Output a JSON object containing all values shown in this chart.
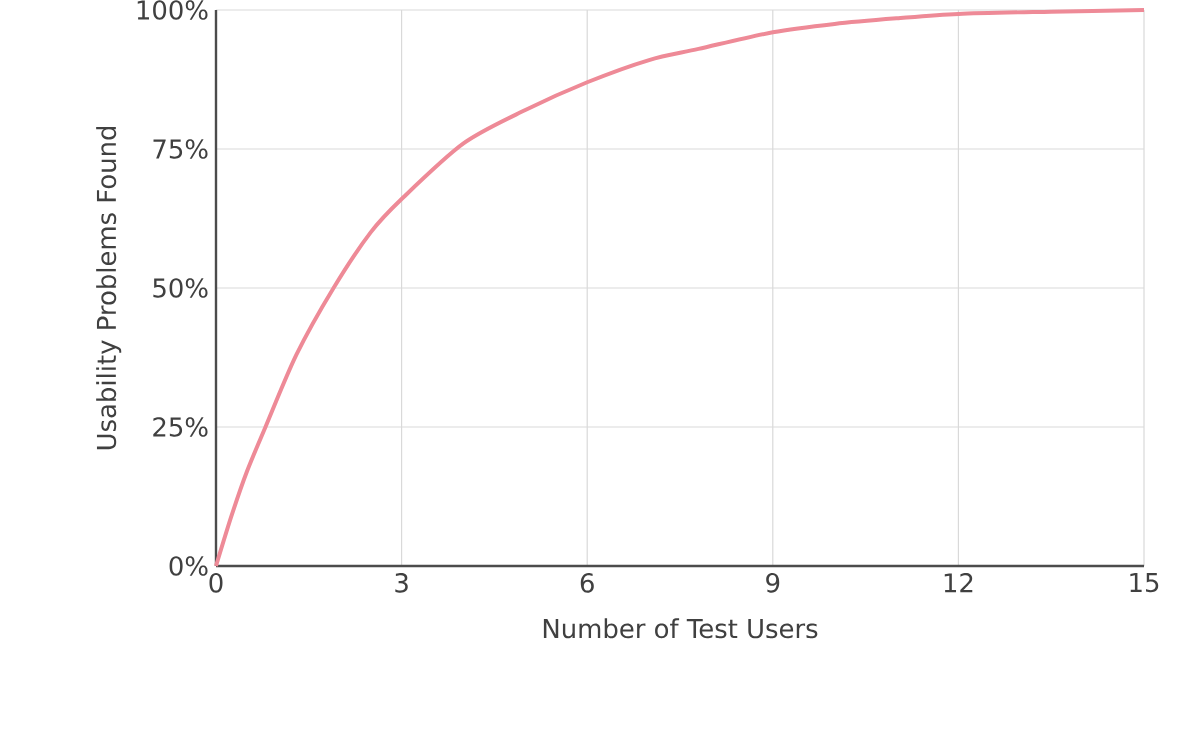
{
  "chart_data": {
    "type": "line",
    "xlabel": "Number of Test Users",
    "ylabel": "Usability Problems Found",
    "series": [
      {
        "color": "#ee8a97",
        "x": [
          0,
          0.25,
          0.5,
          0.8,
          1.3,
          1.9,
          2.5,
          3,
          4,
          5,
          6,
          7,
          7.8,
          9,
          10,
          11,
          12,
          13.5,
          15
        ],
        "values": [
          0,
          9,
          17,
          25,
          38,
          50,
          60,
          66,
          76,
          82,
          87,
          91,
          93,
          96,
          97.5,
          98.5,
          99.3,
          99.7,
          100
        ]
      }
    ],
    "xlim": [
      0,
      15
    ],
    "xticks": [
      0,
      3,
      6,
      9,
      12,
      15
    ],
    "ylim": [
      0,
      100
    ],
    "yticks": [
      {
        "value": 0,
        "label": "0%"
      },
      {
        "value": 25,
        "label": "25%"
      },
      {
        "value": 50,
        "label": "50%"
      },
      {
        "value": 75,
        "label": "75%"
      },
      {
        "value": 100,
        "label": "100%"
      }
    ],
    "grid": true,
    "marker": "none",
    "line_style": "solid"
  }
}
